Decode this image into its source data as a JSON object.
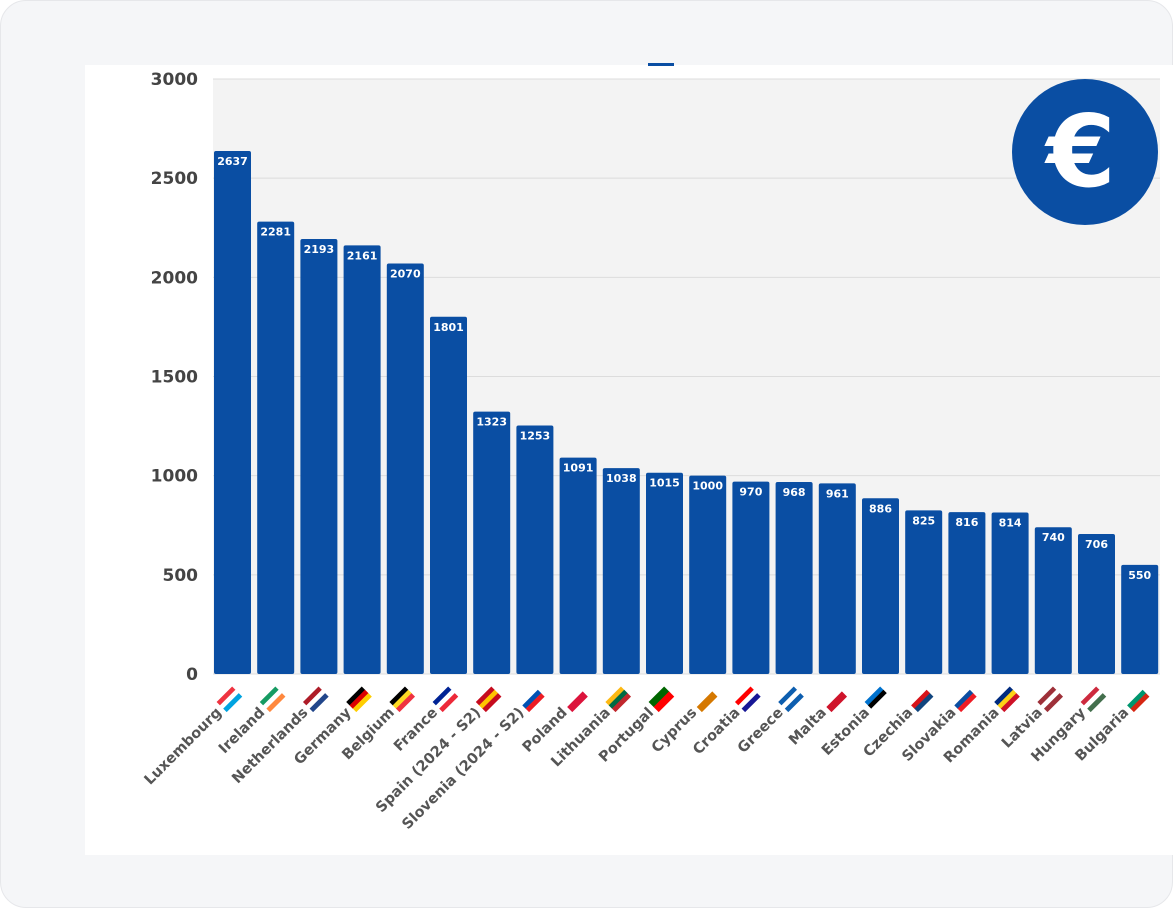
{
  "chart_data": {
    "type": "bar",
    "title": "",
    "xlabel": "",
    "ylabel": "",
    "ylim": [
      0,
      3000
    ],
    "yticks": [
      0,
      500,
      1000,
      1500,
      2000,
      2500,
      3000
    ],
    "grid": true,
    "bar_color": "#0a4ea3",
    "categories": [
      "Luxembourg",
      "Ireland",
      "Netherlands",
      "Germany",
      "Belgium",
      "France",
      "Spain (2024 - S2)",
      "Slovenia (2024 - S2)",
      "Poland",
      "Lithuania",
      "Portugal",
      "Cyprus",
      "Croatia",
      "Greece",
      "Malta",
      "Estonia",
      "Czechia",
      "Slovakia",
      "Romania",
      "Latvia",
      "Hungary",
      "Bulgaria"
    ],
    "values": [
      2637,
      2281,
      2193,
      2161,
      2070,
      1801,
      1323,
      1253,
      1091,
      1038,
      1015,
      1000,
      970,
      968,
      961,
      886,
      825,
      816,
      814,
      740,
      706,
      550
    ],
    "data_labels": true,
    "flag_colors": [
      [
        "#ef3340",
        "#ffffff",
        "#00a3e0"
      ],
      [
        "#169b62",
        "#ffffff",
        "#ff883e"
      ],
      [
        "#ae1c28",
        "#ffffff",
        "#21468b"
      ],
      [
        "#000000",
        "#dd0000",
        "#ffce00"
      ],
      [
        "#000000",
        "#fdda24",
        "#ef3340"
      ],
      [
        "#002395",
        "#ffffff",
        "#ed2939"
      ],
      [
        "#c60b1e",
        "#ffc400",
        "#c60b1e"
      ],
      [
        "#ffffff",
        "#0052b4",
        "#ed1c24"
      ],
      [
        "#ffffff",
        "#dc143c"
      ],
      [
        "#fdb913",
        "#006a44",
        "#c1272d"
      ],
      [
        "#006600",
        "#ff0000"
      ],
      [
        "#ffffff",
        "#d57800"
      ],
      [
        "#ff0000",
        "#ffffff",
        "#171796"
      ],
      [
        "#0d5eaf",
        "#ffffff",
        "#0d5eaf"
      ],
      [
        "#ffffff",
        "#cf142b"
      ],
      [
        "#0072ce",
        "#000000",
        "#ffffff"
      ],
      [
        "#ffffff",
        "#d7141a",
        "#11457e"
      ],
      [
        "#ffffff",
        "#0b4ea2",
        "#ee1c25"
      ],
      [
        "#002b7f",
        "#fcd116",
        "#ce1126"
      ],
      [
        "#9e3039",
        "#ffffff",
        "#9e3039"
      ],
      [
        "#cd2a3e",
        "#ffffff",
        "#436f4d"
      ],
      [
        "#ffffff",
        "#00966e",
        "#d62612"
      ]
    ]
  },
  "logo": {
    "icon": "euro-icon",
    "color": "#0a4ea3",
    "text": "€"
  }
}
